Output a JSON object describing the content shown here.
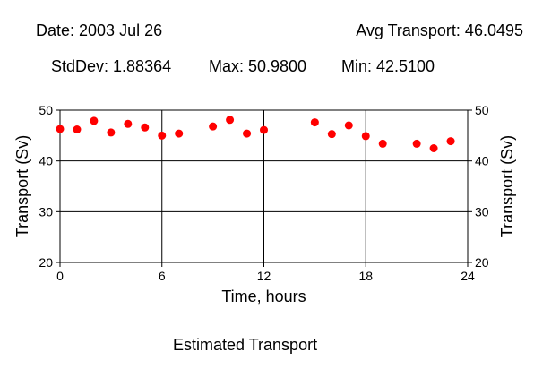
{
  "header": {
    "date_label": "Date: 2003 Jul 26",
    "avg_label": "Avg Transport: 46.0495",
    "stddev_label": "StdDev: 1.88364",
    "max_label": "Max: 50.9800",
    "min_label": "Min: 42.5100"
  },
  "footer": {
    "caption": "Estimated Transport"
  },
  "chart_data": {
    "type": "scatter",
    "xlabel": "Time, hours",
    "ylabel": "Transport (Sv)",
    "xlim": [
      0,
      24
    ],
    "ylim": [
      20,
      50
    ],
    "xticks": [
      0,
      6,
      12,
      18,
      24
    ],
    "yticks": [
      20,
      30,
      40,
      50
    ],
    "grid": true,
    "marker_color": "#ff0000",
    "series": [
      {
        "x": [
          0,
          1,
          2,
          3,
          4,
          5,
          6,
          7,
          9,
          10,
          11,
          12,
          15,
          16,
          17,
          18,
          19,
          21,
          22,
          23
        ],
        "y": [
          46.3,
          46.2,
          47.9,
          45.6,
          47.3,
          46.6,
          45.0,
          45.4,
          46.8,
          48.1,
          45.4,
          46.1,
          47.6,
          45.3,
          47.0,
          44.9,
          43.4,
          43.4,
          42.5,
          43.9
        ]
      }
    ]
  }
}
